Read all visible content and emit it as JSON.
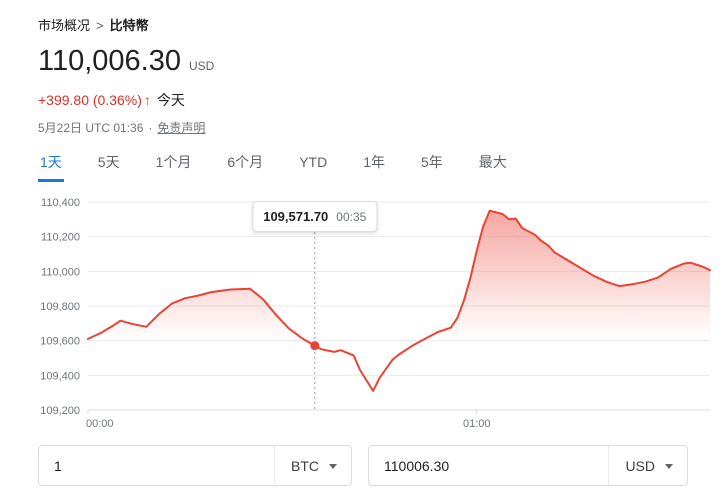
{
  "breadcrumb": {
    "root": "市场概况",
    "separator": ">",
    "current": "比特幣"
  },
  "quote": {
    "price": "110,006.30",
    "currency": "USD",
    "change": "+399.80 (0.36%)",
    "arrow": "↑",
    "period": "今天",
    "datetime": "5月22日 UTC 01:36",
    "dot": "·",
    "disclaimer": "免责声明"
  },
  "tabs": [
    {
      "label": "1天",
      "active": true
    },
    {
      "label": "5天",
      "active": false
    },
    {
      "label": "1个月",
      "active": false
    },
    {
      "label": "6个月",
      "active": false
    },
    {
      "label": "YTD",
      "active": false
    },
    {
      "label": "1年",
      "active": false
    },
    {
      "label": "5年",
      "active": false
    },
    {
      "label": "最大",
      "active": false
    }
  ],
  "chart_data": {
    "type": "line",
    "instrument": "BTC / USD",
    "x_unit": "minutes since 00:00 UTC",
    "x_range": [
      0,
      96
    ],
    "ylim": [
      109200,
      110400
    ],
    "y_ticks": [
      109200,
      109400,
      109600,
      109800,
      110000,
      110200,
      110400
    ],
    "x_ticks": [
      {
        "t": 0,
        "label": "00:00"
      },
      {
        "t": 60,
        "label": "01:00"
      }
    ],
    "grid": true,
    "legend": false,
    "line_color": "#ea4335",
    "fill_baseline": 109606.5,
    "marker": {
      "t": 35,
      "price": 109571.7,
      "label_value": "109,571.70",
      "label_time": "00:35"
    },
    "series": [
      {
        "name": "BTC/USD",
        "points": [
          [
            0,
            109610
          ],
          [
            2,
            109645
          ],
          [
            4,
            109690
          ],
          [
            5,
            109715
          ],
          [
            7,
            109695
          ],
          [
            9,
            109680
          ],
          [
            11,
            109755
          ],
          [
            13,
            109815
          ],
          [
            15,
            109845
          ],
          [
            17,
            109860
          ],
          [
            19,
            109880
          ],
          [
            22,
            109895
          ],
          [
            25,
            109900
          ],
          [
            27,
            109840
          ],
          [
            29,
            109750
          ],
          [
            31,
            109670
          ],
          [
            33,
            109615
          ],
          [
            35,
            109571.7
          ],
          [
            36,
            109550
          ],
          [
            38,
            109535
          ],
          [
            39,
            109545
          ],
          [
            41,
            109515
          ],
          [
            42,
            109430
          ],
          [
            44,
            109310
          ],
          [
            45,
            109385
          ],
          [
            47,
            109490
          ],
          [
            48,
            109520
          ],
          [
            50,
            109570
          ],
          [
            52,
            109610
          ],
          [
            54,
            109650
          ],
          [
            56,
            109675
          ],
          [
            57,
            109730
          ],
          [
            58,
            109830
          ],
          [
            59,
            109960
          ],
          [
            60,
            110120
          ],
          [
            61,
            110260
          ],
          [
            62,
            110350
          ],
          [
            64,
            110330
          ],
          [
            65,
            110300
          ],
          [
            66,
            110305
          ],
          [
            67,
            110250
          ],
          [
            69,
            110210
          ],
          [
            70,
            110175
          ],
          [
            71,
            110150
          ],
          [
            72,
            110110
          ],
          [
            74,
            110065
          ],
          [
            76,
            110020
          ],
          [
            78,
            109975
          ],
          [
            80,
            109940
          ],
          [
            82,
            109915
          ],
          [
            84,
            109925
          ],
          [
            86,
            109940
          ],
          [
            88,
            109965
          ],
          [
            90,
            110015
          ],
          [
            92,
            110045
          ],
          [
            93,
            110050
          ],
          [
            95,
            110025
          ],
          [
            96,
            110006.3
          ]
        ]
      }
    ]
  },
  "converter": {
    "from": {
      "amount": "1",
      "currency": "BTC"
    },
    "to": {
      "amount": "110006.30",
      "currency": "USD"
    }
  },
  "colors": {
    "accent_blue": "#1a73e8",
    "change_red": "#d93025",
    "line_red": "#ea4335",
    "text_primary": "#202124",
    "text_secondary": "#70757a"
  }
}
